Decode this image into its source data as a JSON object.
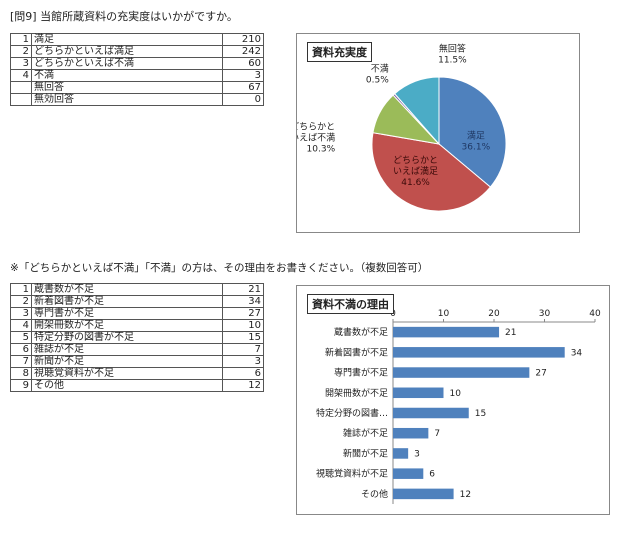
{
  "question_title": "[問9] 当館所蔵資料の充実度はいかがですか。",
  "satisfaction_table": {
    "rows": [
      {
        "no": "1",
        "label": "満足",
        "value": "210"
      },
      {
        "no": "2",
        "label": "どちらかといえば満足",
        "value": "242"
      },
      {
        "no": "3",
        "label": "どちらかといえば不満",
        "value": "60"
      },
      {
        "no": "4",
        "label": "不満",
        "value": "3"
      },
      {
        "no": "",
        "label": "無回答",
        "value": "67"
      },
      {
        "no": "",
        "label": "無効回答",
        "value": "0"
      }
    ]
  },
  "followup_note": "※「どちらかといえば不満」「不満」の方は、その理由をお書きください。（複数回答可）",
  "reason_table": {
    "rows": [
      {
        "no": "1",
        "label": "蔵書数が不足",
        "value": "21"
      },
      {
        "no": "2",
        "label": "新着図書が不足",
        "value": "34"
      },
      {
        "no": "3",
        "label": "専門書が不足",
        "value": "27"
      },
      {
        "no": "4",
        "label": "開架冊数が不足",
        "value": "10"
      },
      {
        "no": "5",
        "label": "特定分野の図書が不足",
        "value": "15"
      },
      {
        "no": "6",
        "label": "雑誌が不足",
        "value": "7"
      },
      {
        "no": "7",
        "label": "新聞が不足",
        "value": "3"
      },
      {
        "no": "8",
        "label": "視聴覚資料が不足",
        "value": "6"
      },
      {
        "no": "9",
        "label": "その他",
        "value": "12"
      }
    ]
  },
  "chart_data": [
    {
      "type": "pie",
      "title": "資料充実度",
      "slices": [
        {
          "label_lines": [
            "満足"
          ],
          "value": 36.1,
          "pct": "36.1%",
          "color": "#4f81bd"
        },
        {
          "label_lines": [
            "どちらかと",
            "いえば満足"
          ],
          "value": 41.6,
          "pct": "41.6%",
          "color": "#c0504d"
        },
        {
          "label_lines": [
            "どちらかと",
            "いえば不満"
          ],
          "value": 10.3,
          "pct": "10.3%",
          "color": "#9bbb59"
        },
        {
          "label_lines": [
            "不満"
          ],
          "value": 0.5,
          "pct": "0.5%",
          "color": "#8064a2"
        },
        {
          "label_lines": [
            "無回答"
          ],
          "value": 11.5,
          "pct": "11.5%",
          "color": "#4bacc6"
        }
      ]
    },
    {
      "type": "bar",
      "orientation": "horizontal",
      "title": "資料不満の理由",
      "categories": [
        "蔵書数が不足",
        "新着図書が不足",
        "専門書が不足",
        "開架冊数が不足",
        "特定分野の図書…",
        "雑誌が不足",
        "新聞が不足",
        "視聴覚資料が不足",
        "その他"
      ],
      "values": [
        21,
        34,
        27,
        10,
        15,
        7,
        3,
        6,
        12
      ],
      "xlim": [
        0,
        40
      ],
      "xticks": [
        0,
        10,
        20,
        30,
        40
      ],
      "bar_color": "#4f81bd"
    }
  ]
}
